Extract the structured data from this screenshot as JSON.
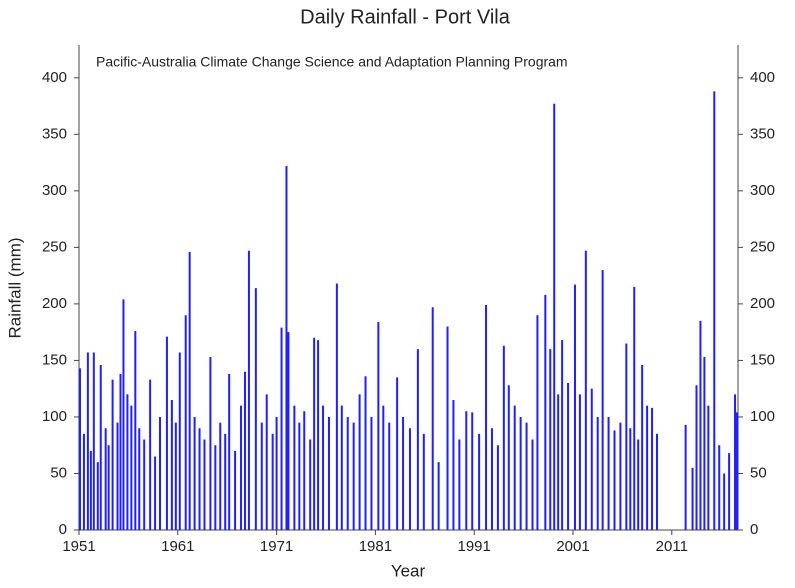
{
  "chart_data": {
    "type": "spike",
    "title": "Daily Rainfall - Port Vila",
    "annotation": "Pacific-Australia Climate Change Science and Adaptation Planning Program",
    "x_label": "Year",
    "y_label": "Rainfall (mm)",
    "color": "#1f1fff",
    "xlim": [
      1951,
      2017.7
    ],
    "xticks": [
      1951,
      1961,
      1971,
      1981,
      1991,
      2001,
      2011
    ],
    "ylim": [
      0,
      429
    ],
    "yticks": [
      0,
      50,
      100,
      150,
      200,
      250,
      300,
      350,
      400
    ],
    "right_axis_ticks": true,
    "x": [
      1951.1,
      1951.5,
      1951.9,
      1952.2,
      1952.5,
      1952.9,
      1953.2,
      1953.7,
      1954.0,
      1954.4,
      1954.9,
      1955.2,
      1955.5,
      1955.9,
      1956.3,
      1956.7,
      1957.1,
      1957.6,
      1958.2,
      1958.7,
      1959.2,
      1959.9,
      1960.4,
      1960.8,
      1961.2,
      1961.8,
      1962.2,
      1962.7,
      1963.2,
      1963.7,
      1964.3,
      1964.8,
      1965.3,
      1965.8,
      1966.2,
      1966.8,
      1967.4,
      1967.8,
      1968.2,
      1968.9,
      1969.5,
      1970.0,
      1970.6,
      1971.0,
      1971.5,
      1972.0,
      1972.2,
      1972.8,
      1973.3,
      1973.8,
      1974.4,
      1974.8,
      1975.2,
      1975.7,
      1976.3,
      1977.1,
      1977.6,
      1978.2,
      1978.8,
      1979.4,
      1980.0,
      1980.6,
      1981.3,
      1981.8,
      1982.4,
      1983.2,
      1983.8,
      1984.5,
      1985.3,
      1985.9,
      1986.8,
      1987.4,
      1988.3,
      1988.9,
      1989.5,
      1990.2,
      1990.8,
      1991.5,
      1992.2,
      1992.8,
      1993.4,
      1994.0,
      1994.5,
      1995.1,
      1995.7,
      1996.3,
      1996.9,
      1997.4,
      1998.2,
      1998.7,
      1999.1,
      1999.5,
      1999.9,
      2000.5,
      2001.2,
      2001.7,
      2002.3,
      2002.9,
      2003.5,
      2004.0,
      2004.6,
      2005.2,
      2005.8,
      2006.4,
      2006.8,
      2007.2,
      2007.6,
      2008.0,
      2008.5,
      2009.0,
      2009.5,
      2012.4,
      2013.1,
      2013.5,
      2013.9,
      2014.3,
      2014.7,
      2015.3,
      2015.8,
      2016.3,
      2016.8,
      2017.4,
      2017.6
    ],
    "values": [
      143,
      85,
      157,
      70,
      157,
      60,
      146,
      90,
      75,
      133,
      95,
      138,
      204,
      120,
      110,
      176,
      90,
      80,
      133,
      65,
      100,
      171,
      115,
      95,
      157,
      190,
      246,
      100,
      90,
      80,
      153,
      75,
      95,
      85,
      138,
      70,
      110,
      140,
      247,
      214,
      95,
      120,
      85,
      100,
      179,
      322,
      175,
      110,
      95,
      105,
      80,
      170,
      168,
      110,
      100,
      218,
      110,
      100,
      95,
      120,
      136,
      100,
      184,
      110,
      95,
      135,
      100,
      90,
      160,
      85,
      197,
      60,
      180,
      115,
      80,
      105,
      104,
      85,
      199,
      90,
      75,
      163,
      128,
      110,
      100,
      95,
      80,
      190,
      208,
      160,
      377,
      120,
      168,
      130,
      217,
      120,
      247,
      125,
      100,
      230,
      100,
      88,
      95,
      165,
      90,
      215,
      80,
      146,
      110,
      108,
      85,
      93,
      55,
      128,
      185,
      153,
      110,
      388,
      75,
      50,
      68,
      120,
      104
    ]
  }
}
